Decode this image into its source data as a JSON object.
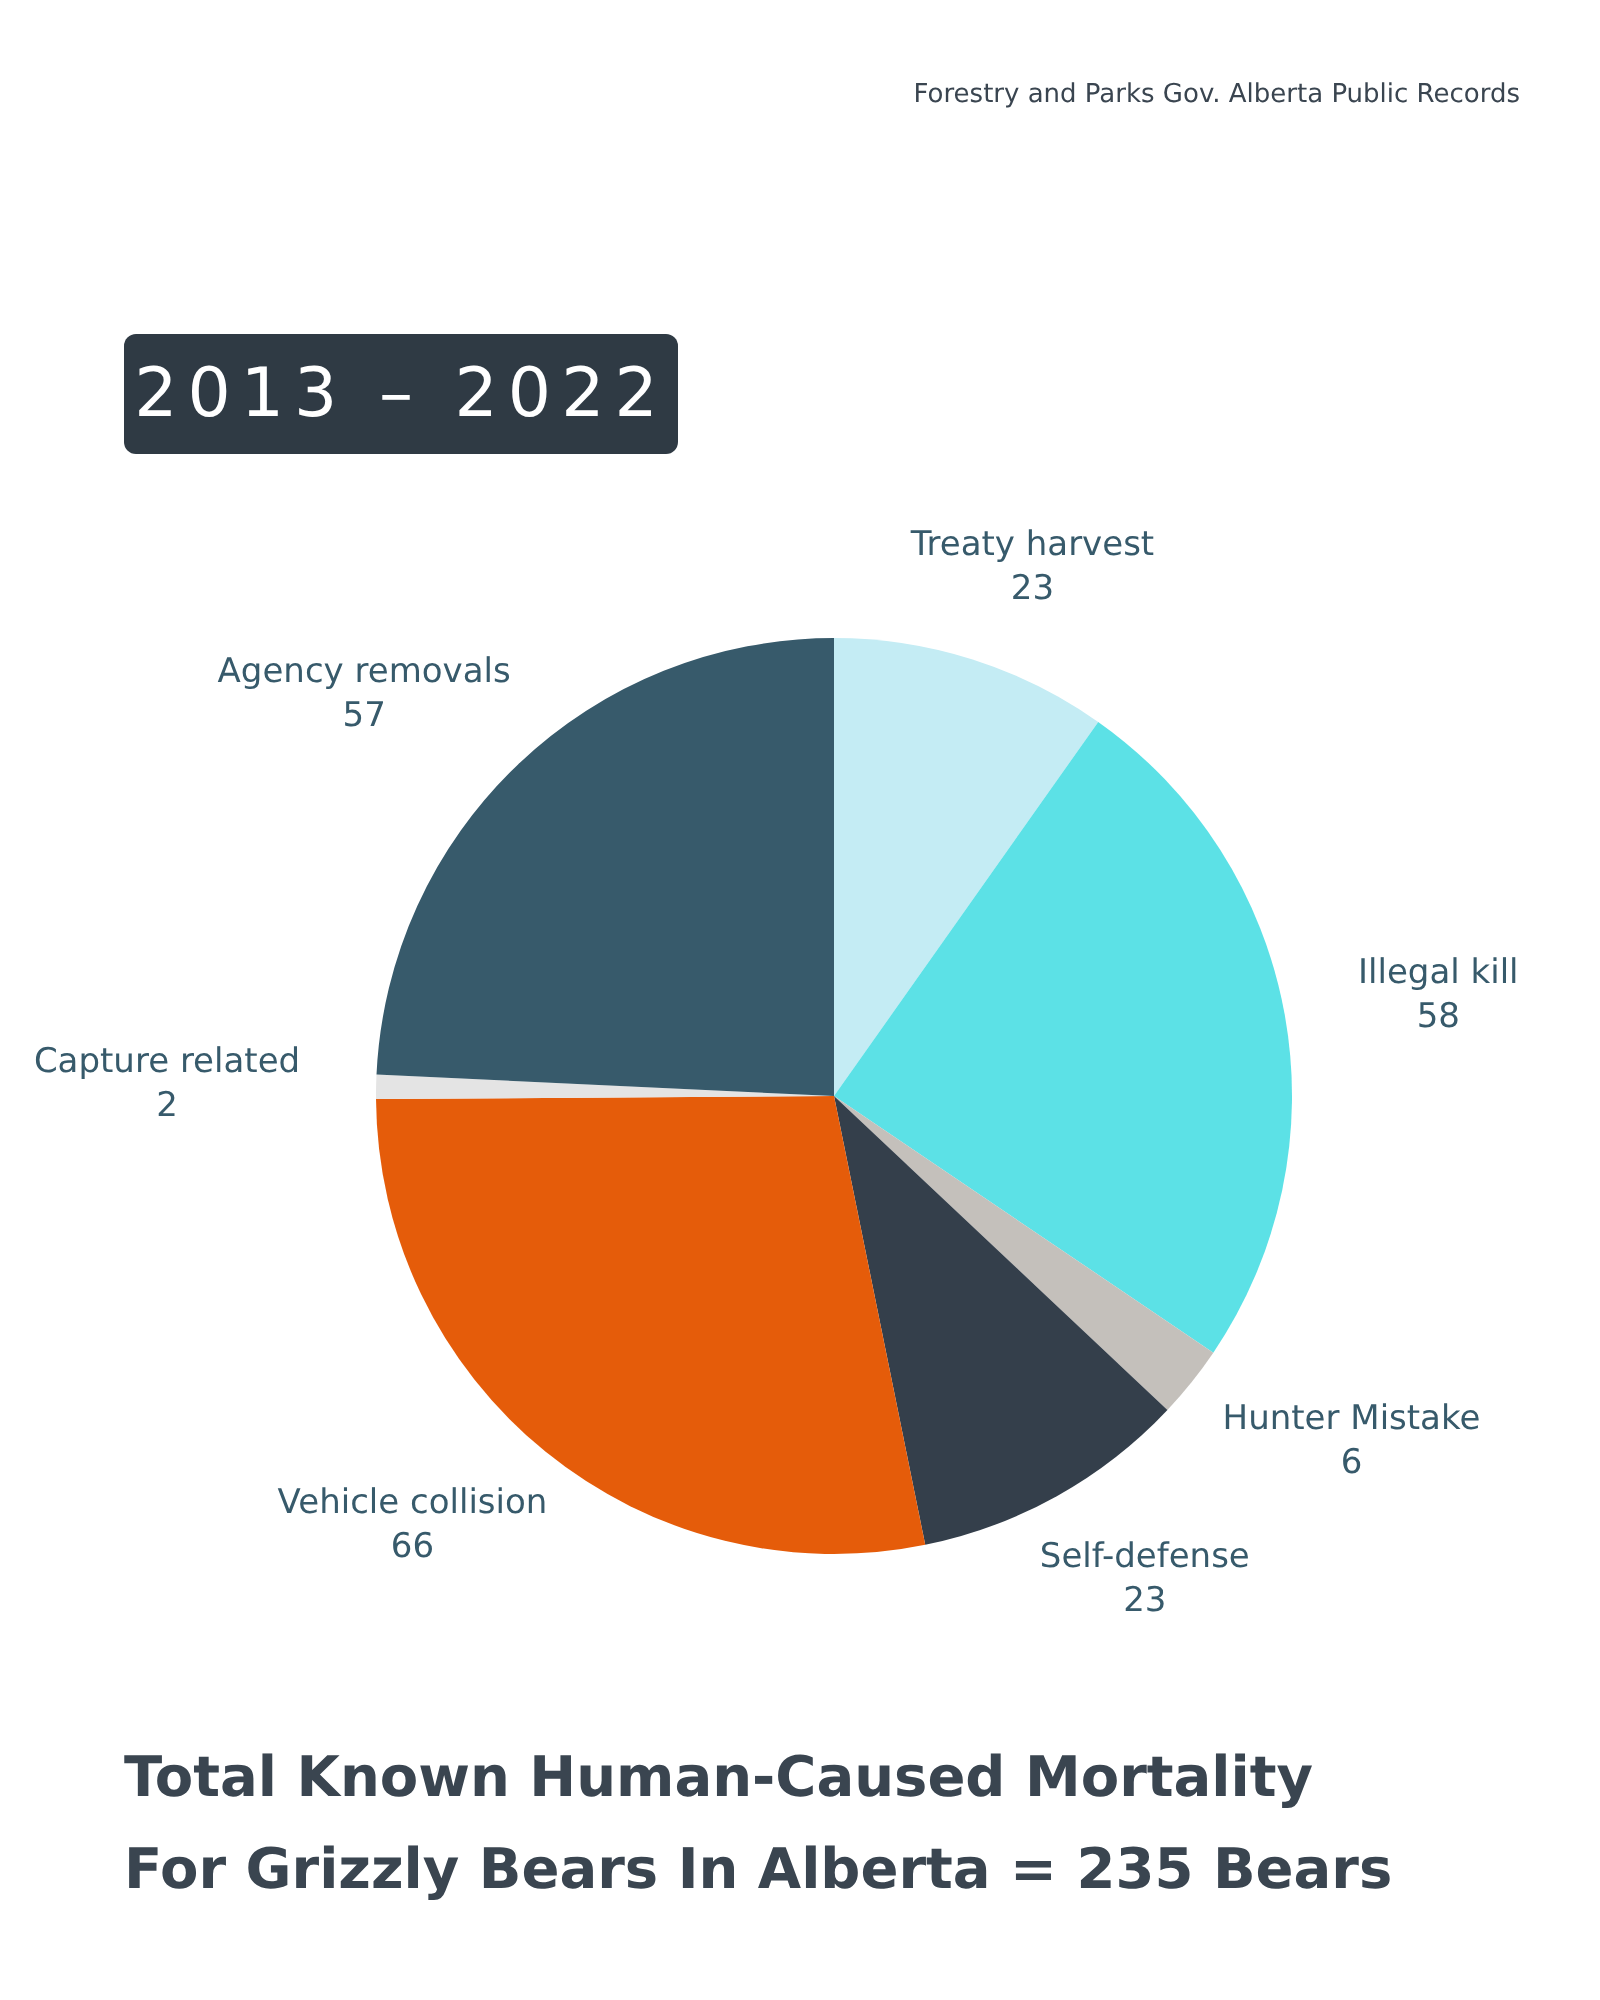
{
  "chart_data": {
    "type": "pie",
    "title": "Total Known Human-Caused Mortality For Grizzly Bears In Alberta = 235 Bears",
    "subtitle": "2013 – 2022",
    "categories": [
      "Treaty harvest",
      "Illegal kill",
      "Hunter Mistake",
      "Self-defense",
      "Vehicle collision",
      "Capture related",
      "Agency removals"
    ],
    "values": [
      23,
      58,
      6,
      23,
      66,
      2,
      57
    ],
    "colors": [
      "#c4ecf4",
      "#5ce1e6",
      "#c4c0bb",
      "#343f4b",
      "#e55c0a",
      "#e4e4e4",
      "#375a6b"
    ],
    "data_labels": true,
    "legend": false,
    "annotations": [
      "Forestry and Parks Gov. Alberta Public Records"
    ]
  }
}
